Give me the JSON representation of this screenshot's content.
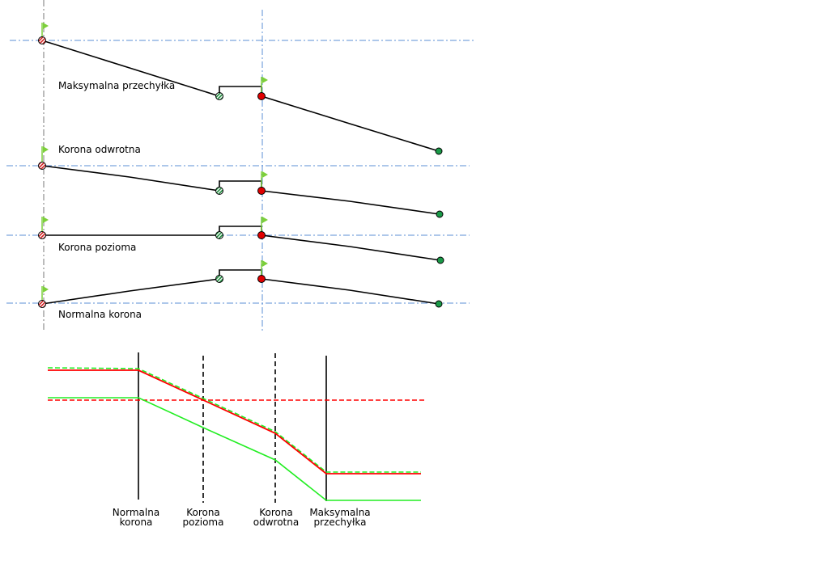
{
  "colors": {
    "axis_line": "#5b8fd6",
    "profile": "#000000",
    "start_marker": "#d42020",
    "mid_marker": "#1a8a3a",
    "pivot_marker": "#e00000",
    "end_marker": "#1a9a48",
    "flag": "#7ccf3a",
    "red_series": "#ff0000",
    "green_series": "#22ee22"
  },
  "top": {
    "rows": [
      {
        "label": "Maksymalna przechyłka"
      },
      {
        "label": "Korona odwrotna"
      },
      {
        "label": "Korona pozioma"
      },
      {
        "label": "Normalna korona"
      }
    ]
  },
  "bottom": {
    "stations": [
      {
        "line1": "Normalna",
        "line2": "korona"
      },
      {
        "line1": "Korona",
        "line2": "pozioma"
      },
      {
        "line1": "Korona",
        "line2": "odwrotna"
      },
      {
        "line1": "Maksymalna",
        "line2": "przechyłka"
      }
    ]
  }
}
